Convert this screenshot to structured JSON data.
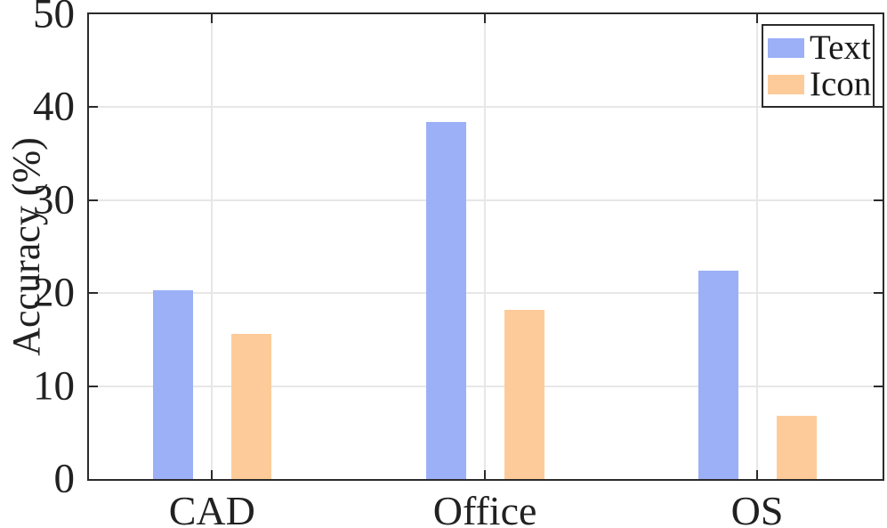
{
  "chart_data": {
    "type": "bar",
    "title": "",
    "categories": [
      "CAD",
      "Office",
      "OS"
    ],
    "series": [
      {
        "name": "Text",
        "color": "#9bb0f6",
        "values": [
          20.3,
          38.4,
          22.4
        ]
      },
      {
        "name": "Icon",
        "color": "#fdcb99",
        "values": [
          15.6,
          18.2,
          6.8
        ]
      }
    ],
    "xlabel": "",
    "ylabel": "Accuracy (%)",
    "ylim": [
      0,
      50
    ],
    "yticks": [
      0,
      10,
      20,
      30,
      40,
      50
    ],
    "grid": true,
    "legend": {
      "position": "top-right",
      "entries": [
        "Text",
        "Icon"
      ]
    }
  },
  "style": {
    "axis_color": "#2b2b2b",
    "grid_color": "#e7e7e7",
    "text_color": "#212121",
    "background": "#ffffff"
  }
}
